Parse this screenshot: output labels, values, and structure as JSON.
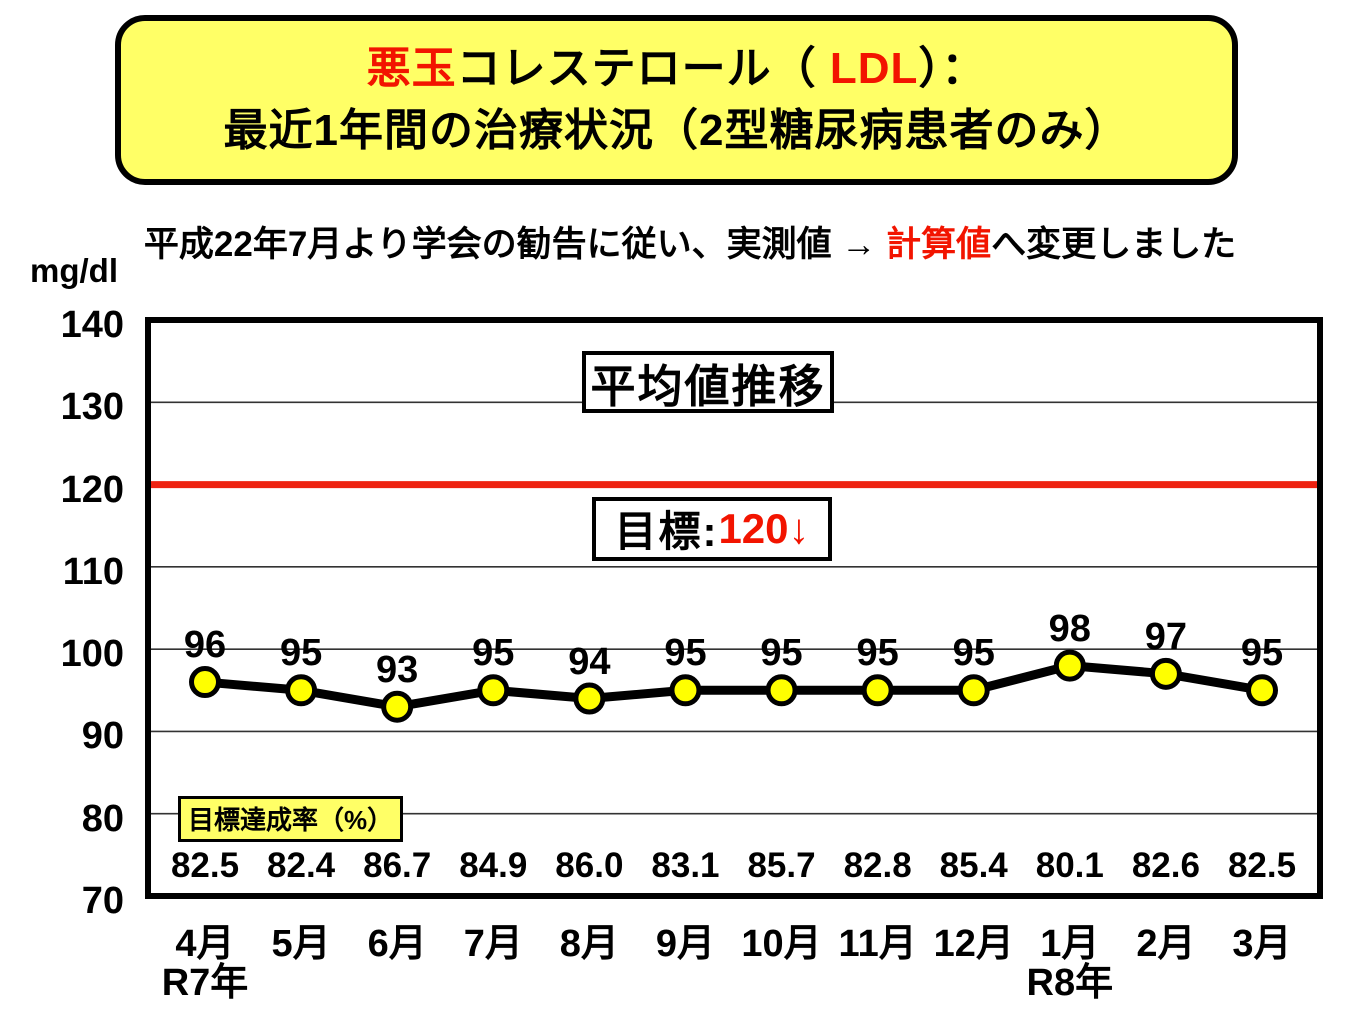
{
  "title": {
    "line1_segments": [
      {
        "text": "悪玉",
        "red": true
      },
      {
        "text": "コレステロール（ ",
        "red": false
      },
      {
        "text": "LDL",
        "red": true
      },
      {
        "text": "）：",
        "red": false
      }
    ],
    "line2": "最近1年間の治療状況（2型糖尿病患者のみ）"
  },
  "subtitle_segments": [
    {
      "text": "平成22年7月より学会の勧告に従い、実測値 → ",
      "red": false
    },
    {
      "text": "計算値",
      "red": true
    },
    {
      "text": "へ変更しました",
      "red": false
    }
  ],
  "y_axis_unit": "mg/dl",
  "colors": {
    "accent_red": "#f21400",
    "target_line_red": "#ee2211",
    "box_yellow": "#ffff66",
    "marker_yellow": "#ffff00",
    "line_black": "#000000",
    "gridline": "#333333"
  },
  "chart_data": {
    "type": "line",
    "title": "平均値推移",
    "ylabel": "mg/dl",
    "xlabel": "",
    "ylim": [
      70,
      140
    ],
    "y_ticks": [
      140,
      130,
      120,
      110,
      100,
      90,
      80,
      70
    ],
    "grid": true,
    "legend_position": "none",
    "categories": [
      "4月",
      "5月",
      "6月",
      "7月",
      "8月",
      "9月",
      "10月",
      "11月",
      "12月",
      "1月",
      "2月",
      "3月"
    ],
    "year_markers": [
      {
        "index": 0,
        "label": "R7年"
      },
      {
        "index": 9,
        "label": "R8年"
      }
    ],
    "series": [
      {
        "name": "平均値",
        "values": [
          96,
          95,
          93,
          95,
          94,
          95,
          95,
          95,
          95,
          98,
          97,
          95
        ]
      }
    ],
    "target_line": {
      "value": 120,
      "label_prefix": "目標:",
      "label_value": "120↓"
    },
    "achievement_rate": {
      "label": "目標達成率（%）",
      "values": [
        "82.5",
        "82.4",
        "86.7",
        "84.9",
        "86.0",
        "83.1",
        "85.7",
        "82.8",
        "85.4",
        "80.1",
        "82.6",
        "82.5"
      ]
    }
  }
}
